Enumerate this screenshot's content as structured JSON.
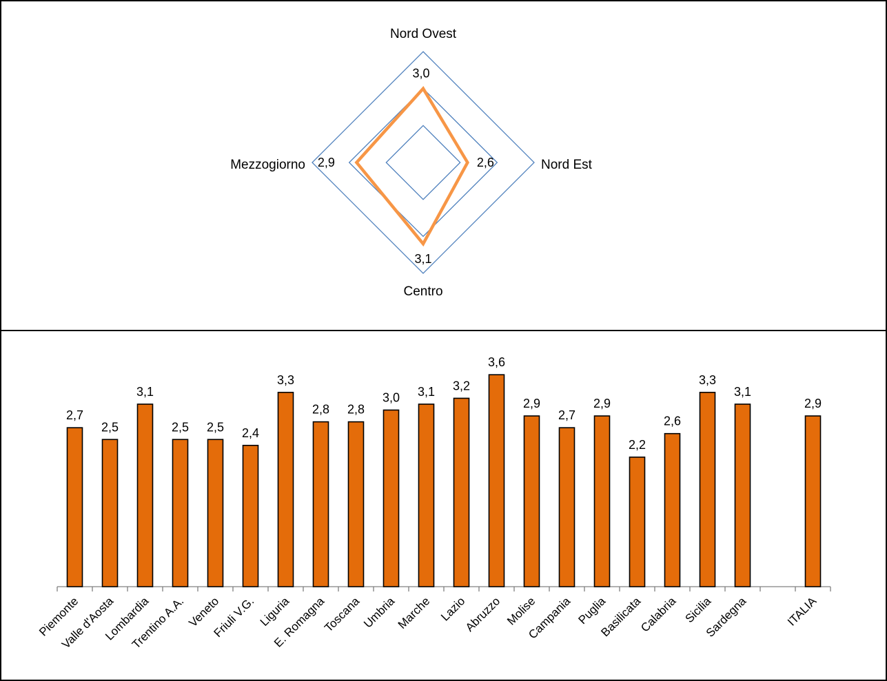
{
  "colors": {
    "bar_fill": "#E46C0A",
    "bar_stroke": "#000000",
    "radar_series": "#F79646",
    "radar_grid": "#4F81BD",
    "frame": "#000000",
    "axis": "#808080"
  },
  "chart_data": [
    {
      "type": "radar",
      "categories": [
        "Nord Ovest",
        "Nord Est",
        "Centro",
        "Mezzogiorno"
      ],
      "values": [
        3.0,
        2.6,
        3.1,
        2.9
      ],
      "value_labels": [
        "3,0",
        "2,6",
        "3,1",
        "2,9"
      ],
      "rmin": 2.0,
      "rmax": 3.5,
      "grid_levels": [
        2.5,
        3.0,
        3.5
      ],
      "legend": "none"
    },
    {
      "type": "bar",
      "categories": [
        "Piemonte",
        "Valle d'Aosta",
        "Lombardia",
        "Trentino A.A.",
        "Veneto",
        "Friuli V.G.",
        "Liguria",
        "E. Romagna",
        "Toscana",
        "Umbria",
        "Marche",
        "Lazio",
        "Abruzzo",
        "Molise",
        "Campania",
        "Puglia",
        "Basilicata",
        "Calabria",
        "Sicilia",
        "Sardegna",
        "",
        "ITALIA"
      ],
      "values": [
        2.7,
        2.5,
        3.1,
        2.5,
        2.5,
        2.4,
        3.3,
        2.8,
        2.8,
        3.0,
        3.1,
        3.2,
        3.6,
        2.9,
        2.7,
        2.9,
        2.2,
        2.6,
        3.3,
        3.1,
        null,
        2.9
      ],
      "value_labels": [
        "2,7",
        "2,5",
        "3,1",
        "2,5",
        "2,5",
        "2,4",
        "3,3",
        "2,8",
        "2,8",
        "3,0",
        "3,1",
        "3,2",
        "3,6",
        "2,9",
        "2,7",
        "2,9",
        "2,2",
        "2,6",
        "3,3",
        "3,1",
        "",
        "2,9"
      ],
      "ylim": [
        0,
        3.6
      ],
      "grid": false,
      "legend": "none"
    }
  ]
}
